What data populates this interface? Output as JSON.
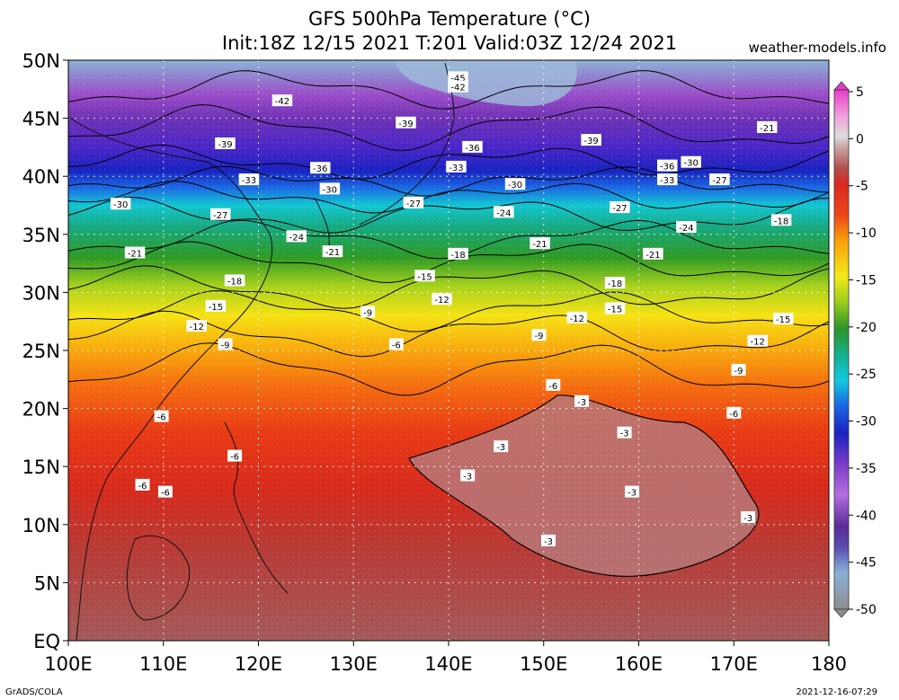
{
  "title": {
    "line1": "GFS 500hPa Temperature (°C)",
    "line2": "Init:18Z 12/15 2021 T:201 Valid:03Z 12/24 2021"
  },
  "site": "weather-models.info",
  "footer": {
    "left": "GrADS/COLA",
    "right": "2021-12-16-07:29"
  },
  "map": {
    "lat_labels": [
      "50N",
      "45N",
      "40N",
      "35N",
      "30N",
      "25N",
      "20N",
      "15N",
      "10N",
      "5N",
      "EQ"
    ],
    "lon_labels": [
      "100E",
      "110E",
      "120E",
      "130E",
      "140E",
      "150E",
      "160E",
      "170E",
      "180"
    ],
    "lat_range": [
      0,
      50
    ],
    "lon_range": [
      100,
      180
    ],
    "grid": "dotted",
    "colorbar": {
      "labels": [
        "5",
        "0",
        "-5",
        "-10",
        "-15",
        "-20",
        "-25",
        "-30",
        "-35",
        "-40",
        "-45",
        "-50"
      ],
      "range": [
        -50,
        5
      ],
      "unit": "°C"
    },
    "contour_labels": [
      {
        "t": "-45",
        "lon": 141,
        "lat": 48.5
      },
      {
        "t": "-42",
        "lon": 141,
        "lat": 47.7
      },
      {
        "t": "-42",
        "lon": 122.5,
        "lat": 46.5
      },
      {
        "t": "-39",
        "lon": 116.5,
        "lat": 42.8
      },
      {
        "t": "-39",
        "lon": 135.5,
        "lat": 44.6
      },
      {
        "t": "-39",
        "lon": 155,
        "lat": 43.1
      },
      {
        "t": "-36",
        "lon": 126.5,
        "lat": 40.7
      },
      {
        "t": "-36",
        "lon": 142.5,
        "lat": 42.5
      },
      {
        "t": "-36",
        "lon": 163,
        "lat": 40.9
      },
      {
        "t": "-33",
        "lon": 119,
        "lat": 39.7
      },
      {
        "t": "-33",
        "lon": 140.8,
        "lat": 40.8
      },
      {
        "t": "-33",
        "lon": 163,
        "lat": 39.7
      },
      {
        "t": "-30",
        "lon": 105.5,
        "lat": 37.6
      },
      {
        "t": "-30",
        "lon": 127.5,
        "lat": 38.9
      },
      {
        "t": "-30",
        "lon": 147,
        "lat": 39.3
      },
      {
        "t": "-30",
        "lon": 165.5,
        "lat": 41.2
      },
      {
        "t": "-27",
        "lon": 116,
        "lat": 36.7
      },
      {
        "t": "-27",
        "lon": 136.3,
        "lat": 37.7
      },
      {
        "t": "-27",
        "lon": 158,
        "lat": 37.3
      },
      {
        "t": "-27",
        "lon": 168.5,
        "lat": 39.7
      },
      {
        "t": "-24",
        "lon": 124,
        "lat": 34.8
      },
      {
        "t": "-24",
        "lon": 145.8,
        "lat": 36.9
      },
      {
        "t": "-24",
        "lon": 165,
        "lat": 35.6
      },
      {
        "t": "-21",
        "lon": 107,
        "lat": 33.4
      },
      {
        "t": "-21",
        "lon": 127.8,
        "lat": 33.5
      },
      {
        "t": "-21",
        "lon": 149.6,
        "lat": 34.2
      },
      {
        "t": "-21",
        "lon": 161.5,
        "lat": 33.3
      },
      {
        "t": "-21",
        "lon": 173.5,
        "lat": 44.2
      },
      {
        "t": "-18",
        "lon": 117.5,
        "lat": 31.0
      },
      {
        "t": "-18",
        "lon": 141,
        "lat": 33.3
      },
      {
        "t": "-18",
        "lon": 157.5,
        "lat": 30.8
      },
      {
        "t": "-18",
        "lon": 175,
        "lat": 36.2
      },
      {
        "t": "-15",
        "lon": 115.5,
        "lat": 28.8
      },
      {
        "t": "-15",
        "lon": 137.5,
        "lat": 31.4
      },
      {
        "t": "-15",
        "lon": 157.5,
        "lat": 28.6
      },
      {
        "t": "-15",
        "lon": 175.2,
        "lat": 27.7
      },
      {
        "t": "-12",
        "lon": 113.5,
        "lat": 27.1
      },
      {
        "t": "-12",
        "lon": 139.3,
        "lat": 29.4
      },
      {
        "t": "-12",
        "lon": 153.5,
        "lat": 27.8
      },
      {
        "t": "-12",
        "lon": 172.5,
        "lat": 25.8
      },
      {
        "t": "-9",
        "lon": 116.5,
        "lat": 25.5
      },
      {
        "t": "-9",
        "lon": 131.5,
        "lat": 28.3
      },
      {
        "t": "-9",
        "lon": 149.5,
        "lat": 26.3
      },
      {
        "t": "-9",
        "lon": 170.5,
        "lat": 23.3
      },
      {
        "t": "-6",
        "lon": 109.8,
        "lat": 19.3
      },
      {
        "t": "-6",
        "lon": 134.5,
        "lat": 25.5
      },
      {
        "t": "-6",
        "lon": 151,
        "lat": 22.0
      },
      {
        "t": "-6",
        "lon": 170,
        "lat": 19.6
      },
      {
        "t": "-6",
        "lon": 117.5,
        "lat": 15.9
      },
      {
        "t": "-6",
        "lon": 107.8,
        "lat": 13.4
      },
      {
        "t": "-6",
        "lon": 110.2,
        "lat": 12.8
      },
      {
        "t": "-3",
        "lon": 154,
        "lat": 20.6
      },
      {
        "t": "-3",
        "lon": 158.5,
        "lat": 17.9
      },
      {
        "t": "-3",
        "lon": 145.5,
        "lat": 16.7
      },
      {
        "t": "-3",
        "lon": 142,
        "lat": 14.2
      },
      {
        "t": "-3",
        "lon": 159.3,
        "lat": 12.8
      },
      {
        "t": "-3",
        "lon": 171.5,
        "lat": 10.6
      },
      {
        "t": "-3",
        "lon": 150.5,
        "lat": 8.6
      }
    ]
  }
}
